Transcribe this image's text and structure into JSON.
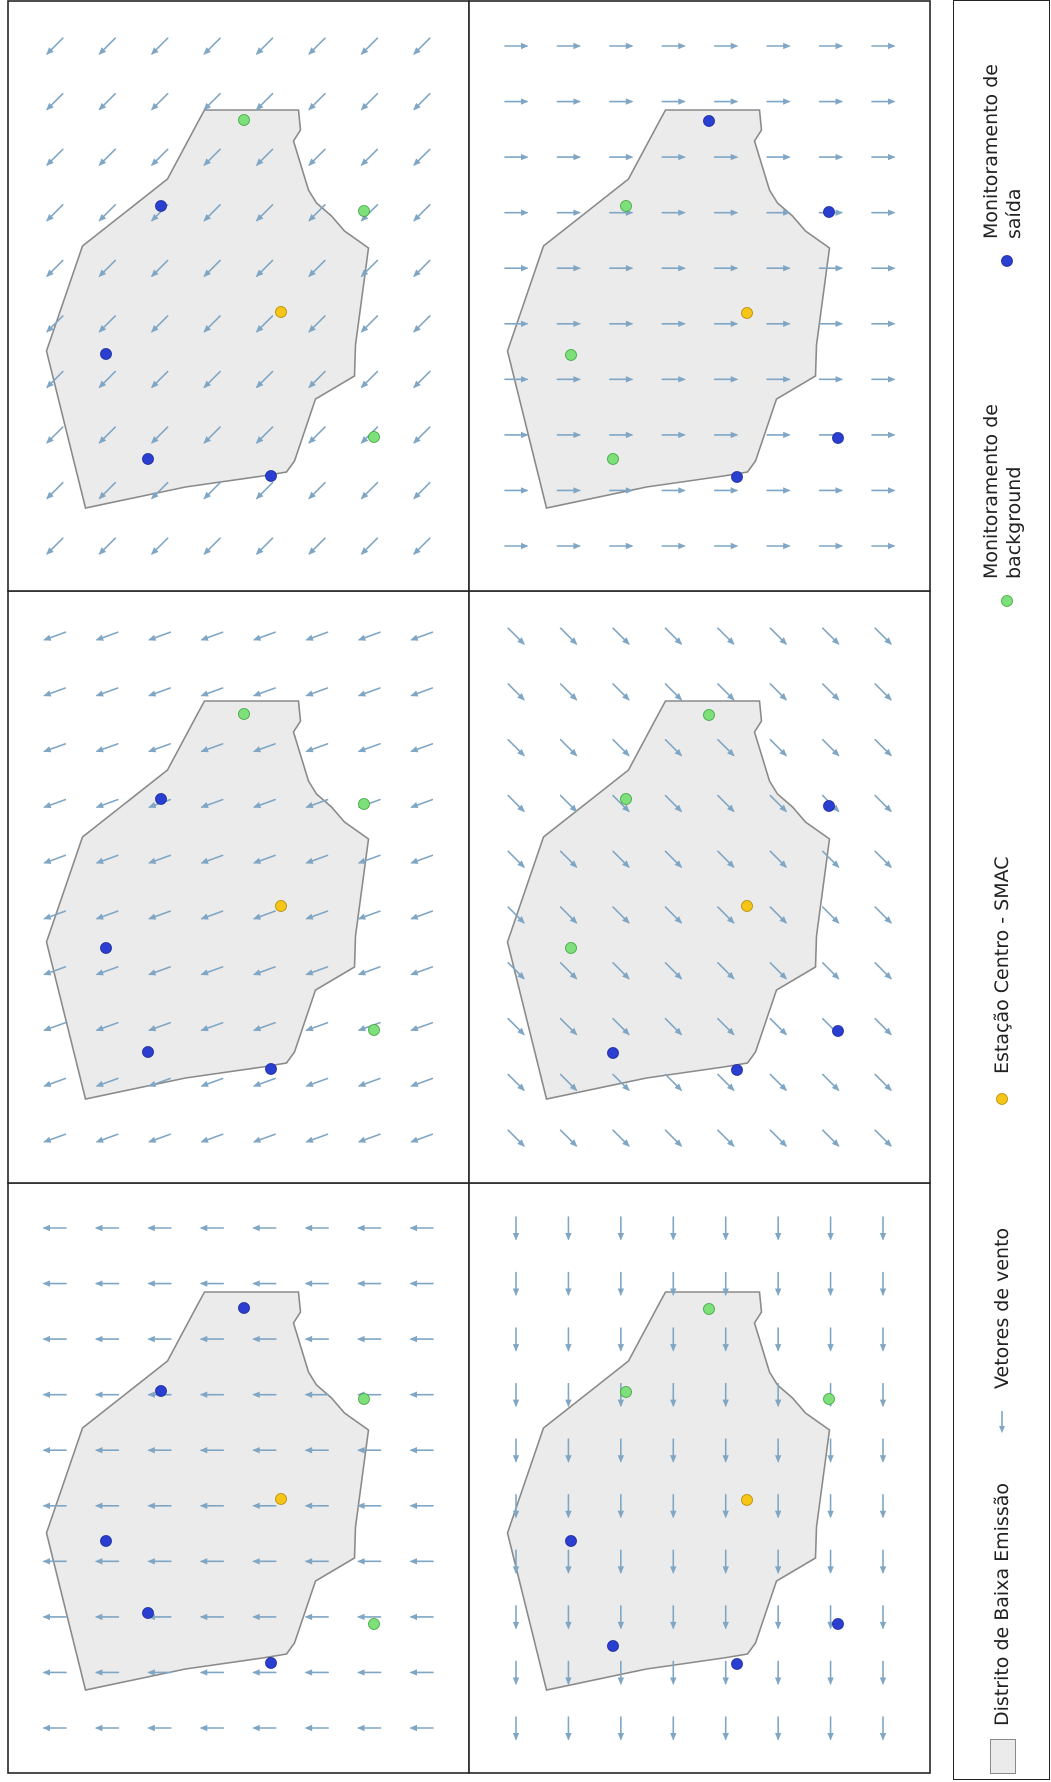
{
  "panels": [
    {
      "id": "wind-west",
      "wind_vector": [
        -1,
        0
      ],
      "points": {
        "exit": [
          [
            244,
            1308
          ],
          [
            161,
            1391
          ],
          [
            148,
            1613
          ],
          [
            271,
            1663
          ],
          [
            106,
            1541
          ]
        ],
        "background": [
          [
            364,
            1399
          ],
          [
            374,
            1624
          ]
        ],
        "centro": [
          281,
          1499
        ]
      }
    },
    {
      "id": "wind-west-southwest",
      "wind_vector": [
        -0.94,
        0.34
      ],
      "points": {
        "exit": [
          [
            161,
            799
          ],
          [
            106,
            948
          ],
          [
            148,
            1052
          ],
          [
            271,
            1069
          ]
        ],
        "background": [
          [
            244,
            714
          ],
          [
            364,
            804
          ],
          [
            374,
            1030
          ]
        ],
        "centro": [
          281,
          906
        ]
      }
    },
    {
      "id": "wind-southwest",
      "wind_vector": [
        -0.71,
        0.71
      ],
      "points": {
        "exit": [
          [
            161,
            206
          ],
          [
            106,
            354
          ],
          [
            148,
            459
          ],
          [
            271,
            476
          ]
        ],
        "background": [
          [
            244,
            120
          ],
          [
            364,
            211
          ],
          [
            374,
            437
          ]
        ],
        "centro": [
          281,
          312
        ]
      }
    },
    {
      "id": "wind-south",
      "wind_vector": [
        0,
        1
      ],
      "points": {
        "exit": [
          [
            571,
            1541
          ],
          [
            613,
            1646
          ],
          [
            737,
            1664
          ],
          [
            838,
            1624
          ]
        ],
        "background": [
          [
            709,
            1309
          ],
          [
            626,
            1392
          ],
          [
            829,
            1399
          ]
        ],
        "centro": [
          747,
          1500
        ]
      }
    },
    {
      "id": "wind-southeast",
      "wind_vector": [
        0.71,
        0.71
      ],
      "points": {
        "exit": [
          [
            829,
            806
          ],
          [
            613,
            1053
          ],
          [
            737,
            1070
          ],
          [
            838,
            1031
          ]
        ],
        "background": [
          [
            709,
            715
          ],
          [
            626,
            799
          ],
          [
            571,
            948
          ]
        ],
        "centro": [
          747,
          906
        ]
      }
    },
    {
      "id": "wind-east",
      "wind_vector": [
        1,
        0
      ],
      "points": {
        "exit": [
          [
            709,
            121
          ],
          [
            829,
            212
          ],
          [
            838,
            438
          ],
          [
            737,
            477
          ]
        ],
        "background": [
          [
            626,
            206
          ],
          [
            571,
            355
          ],
          [
            613,
            459
          ]
        ],
        "centro": [
          747,
          313
        ]
      }
    }
  ],
  "legend": {
    "district_label": "Distrito de Baixa Emissão",
    "wind_label": "Vetores de vento",
    "centro_label": "Estação Centro - SMAC",
    "background_label": "Monitoramento de background",
    "exit_label": "Monitoramento de saída"
  },
  "colors": {
    "district_fill": "#ebebeb",
    "district_stroke": "#8a8a8a",
    "wind_arrow": "#7fa6c4",
    "centro": "#f5c518",
    "background_station": "#7ee07a",
    "exit_station": "#2a3fd1",
    "border": "#222222"
  }
}
